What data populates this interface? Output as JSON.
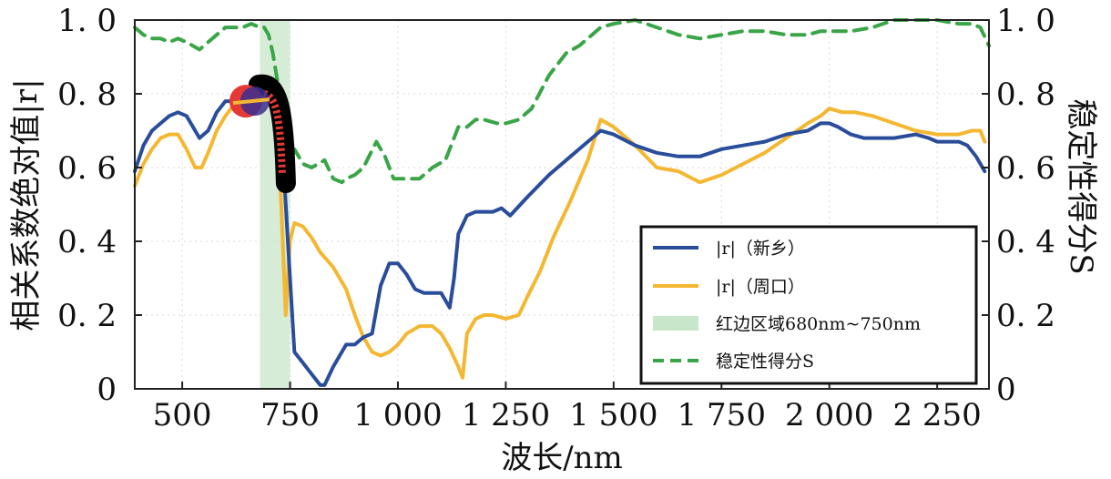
{
  "chart_data": {
    "type": "line",
    "xlabel": "波长/nm",
    "ylabel_left": "相关系数绝对值|r|",
    "ylabel_right": "稳定性得分S",
    "xlim": [
      390,
      2370
    ],
    "ylim_left": [
      0,
      1.0
    ],
    "ylim_right": [
      0,
      1.0
    ],
    "x_ticks": [
      500,
      750,
      1000,
      1250,
      1500,
      1750,
      2000,
      2250
    ],
    "x_tick_labels": [
      "500",
      "750",
      "1 000",
      "1 250",
      "1 500",
      "1 750",
      "2 000",
      "2 250"
    ],
    "y_ticks_left": [
      0,
      0.2,
      0.4,
      0.6,
      0.8,
      1.0
    ],
    "y_tick_labels_left": [
      "0",
      "0. 2",
      "0. 4",
      "0. 6",
      "0. 8",
      "1. 0"
    ],
    "y_ticks_right": [
      0,
      0.2,
      0.4,
      0.6,
      0.8,
      1.0
    ],
    "y_tick_labels_right": [
      "0",
      "0. 2",
      "0. 4",
      "0. 6",
      "0. 8",
      "1. 0"
    ],
    "red_edge_band": {
      "start": 680,
      "end": 750,
      "color": "#c8e6c9"
    },
    "series": [
      {
        "name": "|r|（新乡）",
        "color": "#2a4d9b",
        "style": "solid",
        "axis": "left",
        "x": [
          390,
          410,
          430,
          450,
          470,
          490,
          510,
          540,
          560,
          580,
          600,
          620,
          640,
          660,
          680,
          700,
          720,
          735,
          750,
          760,
          780,
          800,
          820,
          830,
          850,
          870,
          880,
          900,
          920,
          940,
          960,
          980,
          1000,
          1020,
          1040,
          1060,
          1080,
          1100,
          1120,
          1130,
          1140,
          1160,
          1180,
          1200,
          1220,
          1240,
          1260,
          1300,
          1350,
          1400,
          1450,
          1470,
          1500,
          1550,
          1600,
          1650,
          1700,
          1750,
          1800,
          1850,
          1900,
          1950,
          1980,
          2000,
          2020,
          2050,
          2080,
          2100,
          2150,
          2200,
          2230,
          2250,
          2270,
          2300,
          2320,
          2340,
          2360
        ],
        "y": [
          0.59,
          0.66,
          0.7,
          0.72,
          0.74,
          0.75,
          0.74,
          0.68,
          0.7,
          0.75,
          0.78,
          0.78,
          0.79,
          0.8,
          0.8,
          0.79,
          0.71,
          0.6,
          0.3,
          0.1,
          0.07,
          0.04,
          0.01,
          0.01,
          0.06,
          0.1,
          0.12,
          0.12,
          0.14,
          0.15,
          0.28,
          0.34,
          0.34,
          0.31,
          0.27,
          0.26,
          0.26,
          0.26,
          0.22,
          0.3,
          0.42,
          0.47,
          0.48,
          0.48,
          0.48,
          0.49,
          0.47,
          0.52,
          0.58,
          0.63,
          0.68,
          0.7,
          0.69,
          0.66,
          0.64,
          0.63,
          0.63,
          0.65,
          0.66,
          0.67,
          0.69,
          0.7,
          0.72,
          0.72,
          0.71,
          0.69,
          0.68,
          0.68,
          0.68,
          0.69,
          0.68,
          0.67,
          0.67,
          0.67,
          0.66,
          0.63,
          0.59
        ]
      },
      {
        "name": "|r|（周口）",
        "color": "#f4b731",
        "style": "solid",
        "axis": "left",
        "x": [
          390,
          410,
          430,
          450,
          470,
          490,
          510,
          530,
          545,
          560,
          580,
          600,
          620,
          640,
          660,
          680,
          700,
          720,
          740,
          750,
          760,
          780,
          800,
          820,
          850,
          880,
          900,
          920,
          940,
          960,
          980,
          1000,
          1020,
          1050,
          1080,
          1100,
          1120,
          1140,
          1150,
          1160,
          1180,
          1200,
          1220,
          1250,
          1280,
          1300,
          1330,
          1360,
          1400,
          1440,
          1470,
          1500,
          1550,
          1600,
          1650,
          1700,
          1750,
          1800,
          1850,
          1900,
          1950,
          1980,
          2000,
          2030,
          2060,
          2100,
          2150,
          2200,
          2250,
          2300,
          2330,
          2350,
          2360
        ],
        "y": [
          0.55,
          0.61,
          0.65,
          0.68,
          0.69,
          0.69,
          0.65,
          0.6,
          0.6,
          0.64,
          0.7,
          0.74,
          0.77,
          0.78,
          0.79,
          0.79,
          0.78,
          0.77,
          0.2,
          0.4,
          0.45,
          0.44,
          0.41,
          0.37,
          0.33,
          0.27,
          0.2,
          0.14,
          0.1,
          0.09,
          0.1,
          0.12,
          0.15,
          0.17,
          0.17,
          0.15,
          0.11,
          0.06,
          0.03,
          0.15,
          0.19,
          0.2,
          0.2,
          0.19,
          0.2,
          0.25,
          0.32,
          0.41,
          0.51,
          0.62,
          0.73,
          0.71,
          0.66,
          0.6,
          0.59,
          0.56,
          0.58,
          0.61,
          0.64,
          0.68,
          0.72,
          0.74,
          0.76,
          0.75,
          0.75,
          0.74,
          0.72,
          0.7,
          0.69,
          0.69,
          0.7,
          0.7,
          0.67
        ]
      },
      {
        "name": "稳定性得分S",
        "color": "#3aa547",
        "style": "dashed",
        "axis": "right",
        "x": [
          390,
          410,
          430,
          450,
          470,
          490,
          510,
          540,
          560,
          580,
          600,
          620,
          640,
          660,
          680,
          690,
          700,
          710,
          720,
          730,
          740,
          750,
          760,
          780,
          800,
          830,
          850,
          870,
          880,
          900,
          920,
          950,
          970,
          990,
          1010,
          1050,
          1080,
          1110,
          1140,
          1160,
          1180,
          1200,
          1230,
          1250,
          1280,
          1310,
          1350,
          1390,
          1420,
          1450,
          1470,
          1500,
          1550,
          1600,
          1650,
          1700,
          1750,
          1800,
          1850,
          1900,
          1950,
          1980,
          2000,
          2050,
          2100,
          2150,
          2200,
          2250,
          2300,
          2330,
          2350,
          2370
        ],
        "y": [
          0.98,
          0.96,
          0.95,
          0.95,
          0.94,
          0.95,
          0.94,
          0.92,
          0.94,
          0.96,
          0.98,
          0.98,
          0.98,
          0.99,
          0.98,
          0.98,
          0.96,
          0.91,
          0.84,
          0.78,
          0.62,
          0.56,
          0.65,
          0.61,
          0.6,
          0.62,
          0.57,
          0.56,
          0.57,
          0.58,
          0.6,
          0.67,
          0.63,
          0.57,
          0.57,
          0.57,
          0.6,
          0.62,
          0.71,
          0.71,
          0.73,
          0.73,
          0.72,
          0.72,
          0.73,
          0.76,
          0.85,
          0.91,
          0.93,
          0.96,
          0.98,
          0.99,
          1.0,
          0.98,
          0.96,
          0.95,
          0.96,
          0.97,
          0.97,
          0.96,
          0.96,
          0.97,
          0.97,
          0.97,
          0.98,
          1.0,
          1.0,
          1.0,
          0.99,
          0.99,
          0.98,
          0.93
        ]
      }
    ],
    "legend": {
      "position": "bottom-right",
      "entries": [
        {
          "label": "|r|（新乡）",
          "kind": "line",
          "color": "#2a4d9b"
        },
        {
          "label": "|r|（周口）",
          "kind": "line",
          "color": "#f4b731"
        },
        {
          "label": "红边区域680nm~750nm",
          "kind": "patch",
          "color": "#c8e6c9"
        },
        {
          "label": "稳定性得分S",
          "kind": "dashed",
          "color": "#3aa547"
        }
      ]
    },
    "annotation": {
      "type": "highlight-cluster",
      "description_colors": [
        "#000000",
        "#e53935",
        "#3b2f8f",
        "#f4b731"
      ],
      "x": 660,
      "y": 0.78
    }
  }
}
